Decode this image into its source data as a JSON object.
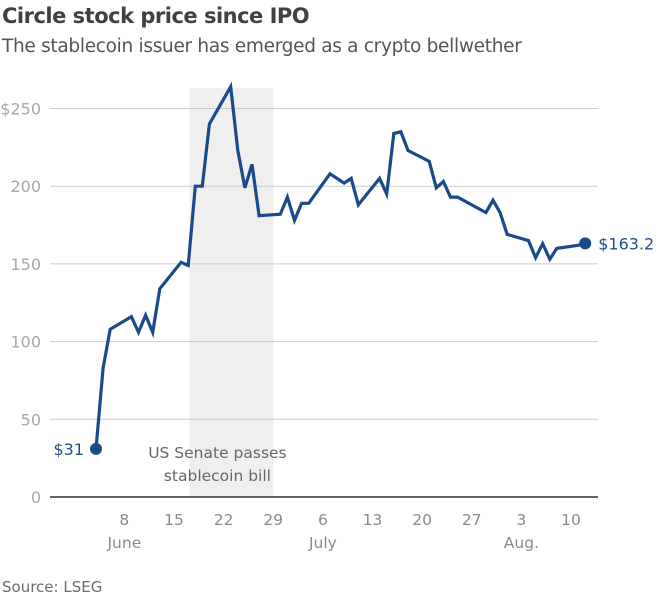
{
  "chart_data": {
    "type": "line",
    "title": "Circle stock price since IPO",
    "subtitle": "The stablecoin issuer has emerged as a crypto bellwether",
    "source": "Source: LSEG",
    "xlabel": "",
    "ylabel": "",
    "ylim": [
      0,
      260
    ],
    "y_ticks": [
      {
        "value": 0,
        "label": "0"
      },
      {
        "value": 50,
        "label": "50"
      },
      {
        "value": 100,
        "label": "100"
      },
      {
        "value": 150,
        "label": "150"
      },
      {
        "value": 200,
        "label": "200"
      },
      {
        "value": 250,
        "label": "$250"
      }
    ],
    "x_range_days": [
      -6,
      74
    ],
    "x_ticks": [
      {
        "day": 4,
        "label": "8",
        "month": "June"
      },
      {
        "day": 11,
        "label": "15",
        "month": ""
      },
      {
        "day": 18,
        "label": "22",
        "month": ""
      },
      {
        "day": 25,
        "label": "29",
        "month": ""
      },
      {
        "day": 32,
        "label": "6",
        "month": "July"
      },
      {
        "day": 39,
        "label": "13",
        "month": ""
      },
      {
        "day": 46,
        "label": "20",
        "month": ""
      },
      {
        "day": 53,
        "label": "27",
        "month": ""
      },
      {
        "day": 60,
        "label": "3",
        "month": "Aug."
      },
      {
        "day": 67,
        "label": "10",
        "month": ""
      }
    ],
    "grid": true,
    "series": [
      {
        "name": "Circle stock price",
        "color": "#1a4a8a",
        "points": [
          {
            "day": 0,
            "value": 31
          },
          {
            "day": 1,
            "value": 83
          },
          {
            "day": 2,
            "value": 108
          },
          {
            "day": 5,
            "value": 116
          },
          {
            "day": 6,
            "value": 106
          },
          {
            "day": 7,
            "value": 117
          },
          {
            "day": 8,
            "value": 106
          },
          {
            "day": 9,
            "value": 134
          },
          {
            "day": 12,
            "value": 151
          },
          {
            "day": 13,
            "value": 149
          },
          {
            "day": 14,
            "value": 200
          },
          {
            "day": 15,
            "value": 200
          },
          {
            "day": 16,
            "value": 240
          },
          {
            "day": 19,
            "value": 264
          },
          {
            "day": 20,
            "value": 223
          },
          {
            "day": 21,
            "value": 199
          },
          {
            "day": 22,
            "value": 214
          },
          {
            "day": 23,
            "value": 181
          },
          {
            "day": 26,
            "value": 182
          },
          {
            "day": 27,
            "value": 193
          },
          {
            "day": 28,
            "value": 178
          },
          {
            "day": 29,
            "value": 189
          },
          {
            "day": 30,
            "value": 189
          },
          {
            "day": 33,
            "value": 208
          },
          {
            "day": 35,
            "value": 202
          },
          {
            "day": 36,
            "value": 205
          },
          {
            "day": 37,
            "value": 188
          },
          {
            "day": 40,
            "value": 205
          },
          {
            "day": 41,
            "value": 195
          },
          {
            "day": 42,
            "value": 234
          },
          {
            "day": 43,
            "value": 235
          },
          {
            "day": 44,
            "value": 223
          },
          {
            "day": 47,
            "value": 216
          },
          {
            "day": 48,
            "value": 199
          },
          {
            "day": 49,
            "value": 203
          },
          {
            "day": 50,
            "value": 193
          },
          {
            "day": 51,
            "value": 193
          },
          {
            "day": 55,
            "value": 183
          },
          {
            "day": 56,
            "value": 191
          },
          {
            "day": 57,
            "value": 183
          },
          {
            "day": 58,
            "value": 169
          },
          {
            "day": 61,
            "value": 165
          },
          {
            "day": 62,
            "value": 154
          },
          {
            "day": 63,
            "value": 163
          },
          {
            "day": 64,
            "value": 153
          },
          {
            "day": 65,
            "value": 160
          },
          {
            "day": 68,
            "value": 162
          },
          {
            "day": 69,
            "value": 163.21
          }
        ]
      }
    ],
    "start_label": "$31",
    "end_label": "$163.21",
    "shaded_region": {
      "from_day": 13.2,
      "to_day": 25,
      "color": "#efefef",
      "annotation": [
        "US Senate passes",
        "stablecoin bill"
      ]
    },
    "legend": "none"
  }
}
